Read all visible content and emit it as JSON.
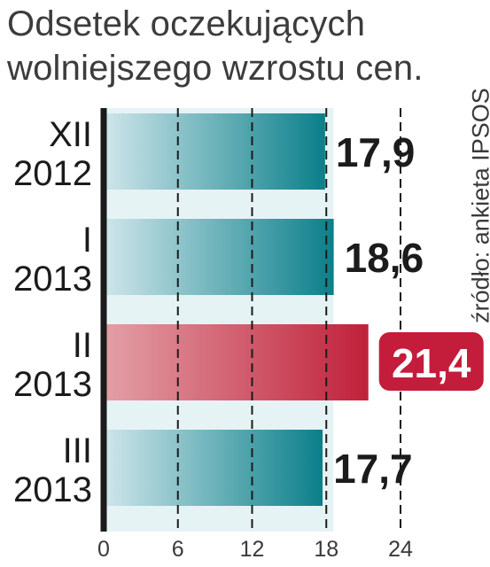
{
  "title_lines": [
    "Odsetek oczekujących",
    "wolniejszego wzrostu cen."
  ],
  "source": "źródło: ankieta IPSOS",
  "colors": {
    "bar_start": "#cfe6ea",
    "bar_end": "#0b7f8a",
    "highlight_start": "#e3a0a6",
    "highlight_end": "#c0203a",
    "highlight_badge": "#c41c3b",
    "plot_bg": "#e6f3f5",
    "axis": "#1b1b1b"
  },
  "chart_data": {
    "type": "bar",
    "orientation": "horizontal",
    "categories": [
      [
        "XII",
        "2012"
      ],
      [
        "I",
        "2013"
      ],
      [
        "II",
        "2013"
      ],
      [
        "III",
        "2013"
      ]
    ],
    "values": [
      17.9,
      18.6,
      21.4,
      17.7
    ],
    "value_labels": [
      "17,9",
      "18,6",
      "21,4",
      "17,7"
    ],
    "highlight_index": 2,
    "xlim": [
      0,
      24
    ],
    "xticks": [
      0,
      6,
      12,
      18,
      24
    ],
    "grid": "dashed vertical"
  }
}
